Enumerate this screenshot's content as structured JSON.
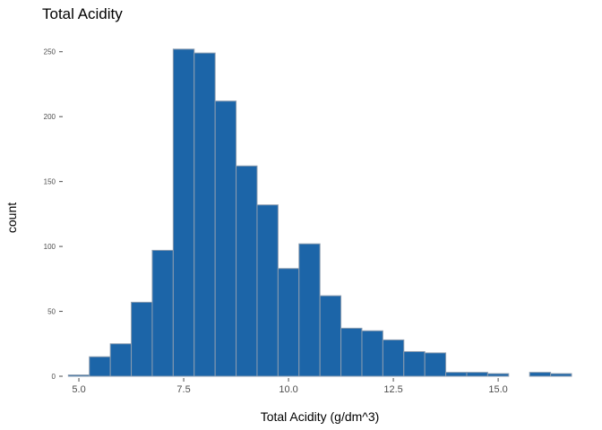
{
  "chart_data": {
    "type": "bar",
    "title": "Total Acidity",
    "xlabel": "Total Acidity (g/dm^3)",
    "ylabel": "count",
    "bin_width": 0.5,
    "bin_centers": [
      5.0,
      5.5,
      6.0,
      6.5,
      7.0,
      7.5,
      8.0,
      8.5,
      9.0,
      9.5,
      10.0,
      10.5,
      11.0,
      11.5,
      12.0,
      12.5,
      13.0,
      13.5,
      14.0,
      14.5,
      15.0,
      15.5,
      16.0,
      16.5
    ],
    "values": [
      1,
      15,
      25,
      57,
      97,
      252,
      249,
      212,
      162,
      132,
      83,
      102,
      62,
      37,
      35,
      28,
      19,
      18,
      3,
      3,
      2,
      0,
      3,
      2
    ],
    "xlim": [
      4.7,
      16.75
    ],
    "ylim": [
      0,
      265
    ],
    "x_ticks": [
      5.0,
      7.5,
      10.0,
      12.5,
      15.0
    ],
    "x_tick_labels": [
      "5.0",
      "7.5",
      "10.0",
      "12.5",
      "15.0"
    ],
    "y_ticks": [
      0,
      50,
      100,
      150,
      200,
      250
    ],
    "y_tick_labels": [
      "0",
      "50",
      "100",
      "150",
      "200",
      "250"
    ],
    "bar_fill": "#1c65a8",
    "bar_outline": "#8c9db0",
    "tick_color": "#4d4d4d",
    "grid": false,
    "legend": false
  }
}
